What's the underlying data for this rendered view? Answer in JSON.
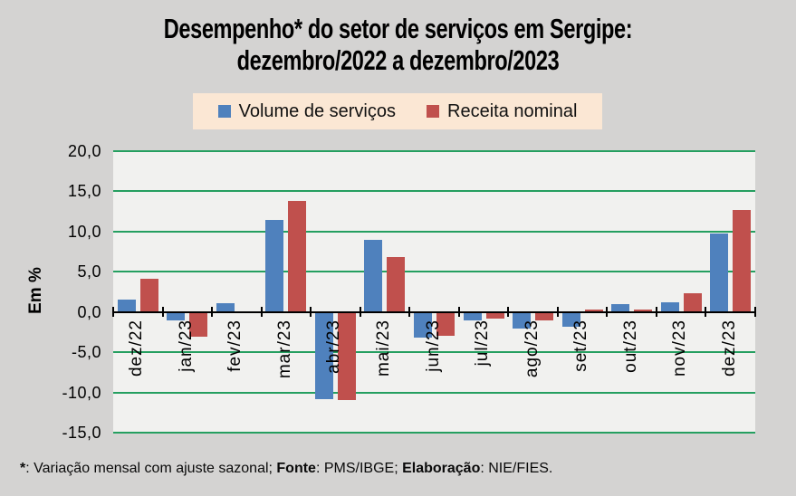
{
  "title": {
    "line1": "Desempenho* do setor de serviços em Sergipe:",
    "line2": "dezembro/2022 a dezembro/2023"
  },
  "legend": {
    "background": "#FBE7D4",
    "items": [
      {
        "key": "volume",
        "label": "Volume de serviços",
        "color": "#4F81BD"
      },
      {
        "key": "receita",
        "label": "Receita nominal",
        "color": "#C0504D"
      }
    ]
  },
  "chart_data": {
    "type": "bar",
    "title": "Desempenho* do setor de serviços em Sergipe: dezembro/2022 a dezembro/2023",
    "xlabel": "",
    "ylabel": "Em %",
    "categories": [
      "dez/22",
      "jan/23",
      "fev/23",
      "mar/23",
      "abr/23",
      "mai/23",
      "jun/23",
      "jul/23",
      "ago/23",
      "set/23",
      "out/23",
      "nov/23",
      "dez/23"
    ],
    "series": [
      {
        "name": "Volume de serviços",
        "color": "#4F81BD",
        "values": [
          1.5,
          -1.1,
          1.1,
          11.5,
          -10.8,
          9.0,
          -3.2,
          -1.1,
          -2.1,
          -1.8,
          1.0,
          1.2,
          9.8
        ]
      },
      {
        "name": "Receita nominal",
        "color": "#C0504D",
        "values": [
          4.1,
          -3.1,
          -0.2,
          13.8,
          -11.0,
          6.8,
          -3.0,
          -0.8,
          -1.1,
          0.3,
          0.3,
          2.3,
          12.7
        ]
      }
    ],
    "ylim": [
      -15,
      20
    ],
    "ytick_values": [
      20,
      15,
      10,
      5,
      0,
      -5,
      -10,
      -15
    ],
    "ytick_labels": [
      "20,0",
      "15,0",
      "10,0",
      "5,0",
      "0,0",
      "-5,0",
      "-10,0",
      "-15,0"
    ],
    "grid": true,
    "gridline_color": "#259F60",
    "legend_position": "top"
  },
  "footnote": {
    "segments": [
      {
        "text": "*",
        "bold": true
      },
      {
        "text": ": Variação mensal com ajuste sazonal; ",
        "bold": false
      },
      {
        "text": "Fonte",
        "bold": true
      },
      {
        "text": ": PMS/IBGE; ",
        "bold": false
      },
      {
        "text": "Elaboração",
        "bold": true
      },
      {
        "text": ": NIE/FIES.",
        "bold": false
      }
    ]
  },
  "colors": {
    "background": "#D4D3D2",
    "plot_background": "#F1F1EF",
    "axis": "#000000",
    "volume_blue": "#4F81BD",
    "receita_red": "#C0504D",
    "gridline_green": "#259F60",
    "legend_background": "#FBE7D4"
  }
}
